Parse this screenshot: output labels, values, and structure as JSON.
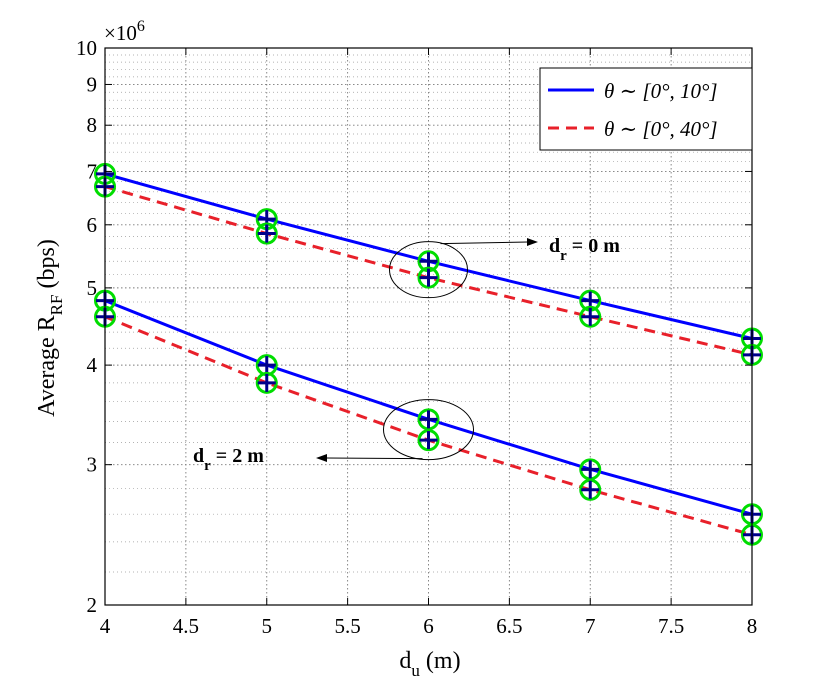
{
  "chart_data": {
    "type": "line",
    "title": "",
    "xlabel": {
      "main": "d",
      "sub": "u",
      "suffix": " (m)"
    },
    "ylabel": {
      "main": "Average R",
      "sub": "RF",
      "suffix": " (bps)"
    },
    "y_multiplier": {
      "base": "×10",
      "exp": "6"
    },
    "xlim": [
      4,
      8
    ],
    "ylim": [
      2,
      10
    ],
    "yscale": "log",
    "x_ticks": [
      "4",
      "4.5",
      "5",
      "5.5",
      "6",
      "6.5",
      "7",
      "7.5",
      "8"
    ],
    "y_ticks": [
      "2",
      "3",
      "4",
      "5",
      "6",
      "7",
      "8",
      "9",
      "10"
    ],
    "grid": true,
    "minor_grid": true,
    "legend_position": "top-right",
    "legend": [
      {
        "label": "θ ∼ [0°, 10°]",
        "color": "#0000ff",
        "style": "solid"
      },
      {
        "label": "θ ∼ [0°, 40°]",
        "color": "#e8202a",
        "style": "dashed"
      }
    ],
    "x": [
      4,
      5,
      6,
      7,
      8
    ],
    "series": [
      {
        "group": "dr0",
        "legend_index": 0,
        "color": "#0000ff",
        "style": "solid",
        "values": [
          6.95,
          6.1,
          5.4,
          4.82,
          4.32
        ]
      },
      {
        "group": "dr0",
        "legend_index": 1,
        "color": "#e8202a",
        "style": "dashed",
        "values": [
          6.7,
          5.85,
          5.15,
          4.6,
          4.12
        ]
      },
      {
        "group": "dr2",
        "legend_index": 0,
        "color": "#0000ff",
        "style": "solid",
        "values": [
          4.82,
          4.0,
          3.42,
          2.96,
          2.6
        ]
      },
      {
        "group": "dr2",
        "legend_index": 1,
        "color": "#e8202a",
        "style": "dashed",
        "values": [
          4.6,
          3.8,
          3.22,
          2.79,
          2.45
        ]
      }
    ],
    "markers": {
      "outer": "circle",
      "outer_color": "#00dd00",
      "inner": "plus",
      "inner_color": "#00008b"
    },
    "annotations": [
      {
        "main": "d",
        "sub": "r",
        "suffix": " = 0 m",
        "ellipse_x": 6.0,
        "ellipse_y": 5.27
      },
      {
        "main": "d",
        "sub": "r",
        "suffix": " = 2 m",
        "ellipse_x": 6.0,
        "ellipse_y": 3.32
      }
    ]
  }
}
